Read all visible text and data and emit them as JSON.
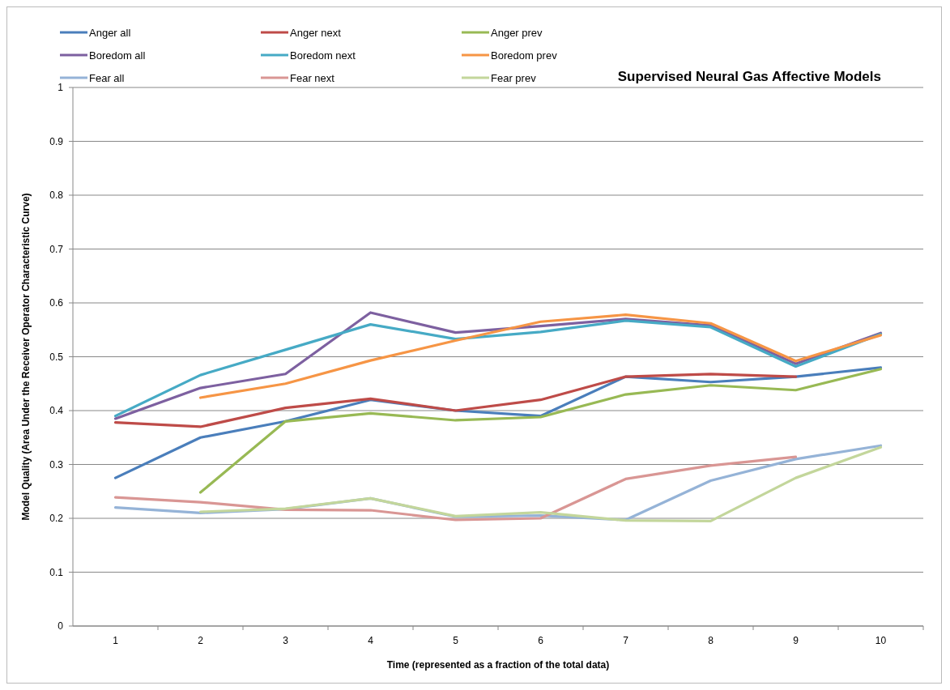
{
  "chart_data": {
    "type": "line",
    "title": "Supervised Neural Gas Affective Models",
    "xlabel": "Time (represented as a fraction of the total data)",
    "ylabel": "Model Quality (Area Under the Receiver Operator Characteristic Curve)",
    "categories": [
      "1",
      "2",
      "3",
      "4",
      "5",
      "6",
      "7",
      "8",
      "9",
      "10"
    ],
    "ylim": [
      0,
      1
    ],
    "yticks": [
      0,
      0.1,
      0.2,
      0.3,
      0.4,
      0.5,
      0.6,
      0.7,
      0.8,
      0.9,
      1
    ],
    "grid": "y",
    "legend": "top",
    "marker": "none",
    "line_style": "solid",
    "series": [
      {
        "name": "Anger all",
        "color": "#4a7ebb",
        "values": [
          0.275,
          0.35,
          0.38,
          0.42,
          0.4,
          0.39,
          0.463,
          0.453,
          0.463,
          0.48
        ]
      },
      {
        "name": "Anger next",
        "color": "#be4b48",
        "values": [
          0.378,
          0.37,
          0.405,
          0.422,
          0.4,
          0.42,
          0.463,
          0.468,
          0.463,
          null
        ]
      },
      {
        "name": "Anger prev",
        "color": "#98b954",
        "values": [
          null,
          0.248,
          0.38,
          0.395,
          0.382,
          0.388,
          0.43,
          0.447,
          0.438,
          0.477
        ]
      },
      {
        "name": "Boredom all",
        "color": "#7d60a0",
        "values": [
          0.385,
          0.442,
          0.468,
          0.582,
          0.545,
          0.557,
          0.57,
          0.558,
          0.487,
          0.544
        ]
      },
      {
        "name": "Boredom next",
        "color": "#46aac5",
        "values": [
          0.39,
          0.466,
          0.513,
          0.56,
          0.533,
          0.546,
          0.567,
          0.555,
          0.482,
          0.542
        ]
      },
      {
        "name": "Boredom prev",
        "color": "#f69545",
        "values": [
          null,
          0.424,
          0.45,
          0.493,
          0.53,
          0.565,
          0.578,
          0.562,
          0.492,
          0.54
        ]
      },
      {
        "name": "Fear all",
        "color": "#95b3d7",
        "values": [
          0.22,
          0.21,
          0.217,
          0.237,
          0.203,
          0.205,
          0.197,
          0.27,
          0.31,
          0.335
        ]
      },
      {
        "name": "Fear next",
        "color": "#d99694",
        "values": [
          0.239,
          0.23,
          0.216,
          0.215,
          0.197,
          0.2,
          0.273,
          0.298,
          0.314,
          null
        ]
      },
      {
        "name": "Fear prev",
        "color": "#c3d69b",
        "values": [
          null,
          0.212,
          0.218,
          0.237,
          0.204,
          0.211,
          0.196,
          0.195,
          0.275,
          0.332
        ]
      }
    ]
  }
}
